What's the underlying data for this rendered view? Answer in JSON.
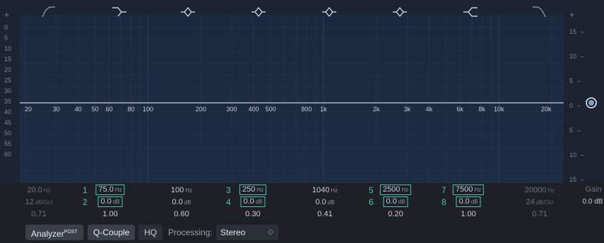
{
  "eq": {
    "plus_left": "+",
    "plus_right": "+",
    "db_scale": [
      "0",
      "5",
      "10",
      "15",
      "20",
      "25",
      "30",
      "35",
      "40",
      "45",
      "50",
      "55",
      "60"
    ],
    "gain_scale": [
      "15",
      "10",
      "5",
      "0",
      "5",
      "10",
      "15"
    ],
    "gain_scale_suffix": "–",
    "freq_labels": [
      "20",
      "30",
      "40",
      "50",
      "60",
      "80",
      "100",
      "200",
      "300",
      "400",
      "500",
      "800",
      "1k",
      "2k",
      "3k",
      "4k",
      "6k",
      "8k",
      "10k",
      "20k"
    ],
    "band_icons": [
      "low-cut-icon",
      "low-shelf-icon",
      "bell-icon",
      "bell-icon",
      "bell-icon",
      "bell-icon",
      "high-shelf-icon",
      "high-cut-icon"
    ]
  },
  "params": {
    "row1": [
      {
        "value": "20.0",
        "unit": "Hz"
      },
      {
        "num": "1",
        "value": "75.0",
        "unit": "Hz"
      },
      {
        "value": "100",
        "unit": "Hz"
      },
      {
        "num": "3",
        "value": "250",
        "unit": "Hz"
      },
      {
        "value": "1040",
        "unit": "Hz"
      },
      {
        "num": "5",
        "value": "2500",
        "unit": "Hz"
      },
      {
        "num": "7",
        "value": "7500",
        "unit": "Hz"
      },
      {
        "value": "20000",
        "unit": "Hz"
      }
    ],
    "row2": [
      {
        "value": "12",
        "unit": "dB/Oct"
      },
      {
        "num": "2",
        "value": "0.0",
        "unit": "dB"
      },
      {
        "value": "0.0",
        "unit": "dB"
      },
      {
        "num": "4",
        "value": "0.0",
        "unit": "dB"
      },
      {
        "value": "0.0",
        "unit": "dB"
      },
      {
        "num": "6",
        "value": "0.0",
        "unit": "dB"
      },
      {
        "num": "8",
        "value": "0.0",
        "unit": "dB"
      },
      {
        "value": "24",
        "unit": "dB/Oct"
      }
    ],
    "row3": [
      "0.71",
      "1.00",
      "0.60",
      "0.30",
      "0.41",
      "0.20",
      "1.00",
      "0.71"
    ],
    "gain_label": "Gain",
    "gain_value": "0.0 dB"
  },
  "toolbar": {
    "analyzer": "Analyzer",
    "analyzer_sup": "POST",
    "q_couple": "Q-Couple",
    "hq": "HQ",
    "processing_label": "Processing:",
    "processing_value": "Stereo"
  },
  "colors": {
    "accent": "#4ec2b0",
    "curve": "#c8d0dc",
    "background": "#1c2333"
  }
}
